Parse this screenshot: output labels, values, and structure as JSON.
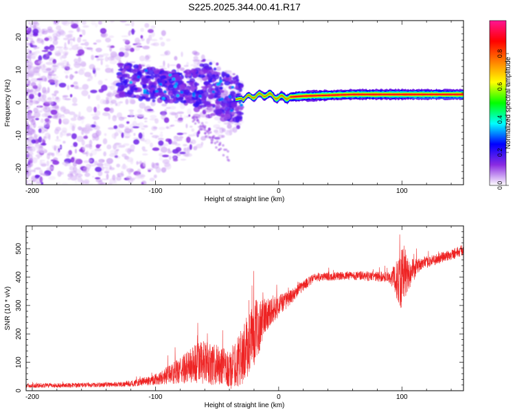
{
  "title": "S225.2025.344.00.41.R17",
  "chart_data": [
    {
      "type": "heatmap",
      "xlabel": "Height of straight line (km)",
      "ylabel": "Frequency (Hz)",
      "xlim": [
        -205,
        150
      ],
      "ylim": [
        -25,
        25
      ],
      "x_ticks": [
        -200,
        -100,
        0,
        100
      ],
      "y_ticks": [
        -20,
        -10,
        0,
        10,
        20
      ],
      "colorbar": {
        "label": "Normalized spectral amplitude",
        "range": [
          0,
          1
        ],
        "ticks": [
          0.0,
          0.2,
          0.4,
          0.6,
          0.8
        ],
        "colors": [
          "#ffffff",
          "#8a2be2",
          "#0000ff",
          "#00ffff",
          "#00ff00",
          "#ffff00",
          "#ff8000",
          "#ff0000",
          "#ff1493"
        ]
      },
      "ridge": [
        {
          "x": -125,
          "f": 7
        },
        {
          "x": -110,
          "f": 6
        },
        {
          "x": -95,
          "f": 5
        },
        {
          "x": -80,
          "f": 5
        },
        {
          "x": -65,
          "f": 4.5
        },
        {
          "x": -55,
          "f": 5
        },
        {
          "x": -45,
          "f": 2
        },
        {
          "x": -35,
          "f": 1
        },
        {
          "x": -20,
          "f": 2
        },
        {
          "x": -10,
          "f": 2.5
        },
        {
          "x": 0,
          "f": 1.5
        },
        {
          "x": 20,
          "f": 2
        },
        {
          "x": 60,
          "f": 2.5
        },
        {
          "x": 100,
          "f": 2.5
        },
        {
          "x": 150,
          "f": 2.5
        }
      ]
    },
    {
      "type": "line",
      "xlabel": "Height of straight line (km)",
      "ylabel": "SNR (10 * v/v)",
      "xlim": [
        -205,
        150
      ],
      "ylim": [
        0,
        580
      ],
      "x_ticks": [
        -200,
        -100,
        0,
        100
      ],
      "y_ticks": [
        0,
        100,
        200,
        300,
        400,
        500
      ],
      "color": "#ee2222",
      "envelope": [
        {
          "x": -205,
          "mean": 18,
          "amp": 8
        },
        {
          "x": -150,
          "mean": 20,
          "amp": 8
        },
        {
          "x": -120,
          "mean": 24,
          "amp": 10
        },
        {
          "x": -100,
          "mean": 40,
          "amp": 20
        },
        {
          "x": -80,
          "mean": 70,
          "amp": 45
        },
        {
          "x": -65,
          "mean": 100,
          "amp": 80
        },
        {
          "x": -50,
          "mean": 90,
          "amp": 70
        },
        {
          "x": -40,
          "mean": 70,
          "amp": 70
        },
        {
          "x": -30,
          "mean": 120,
          "amp": 100
        },
        {
          "x": -20,
          "mean": 200,
          "amp": 120
        },
        {
          "x": -10,
          "mean": 270,
          "amp": 60
        },
        {
          "x": 0,
          "mean": 300,
          "amp": 40
        },
        {
          "x": 10,
          "mean": 330,
          "amp": 25
        },
        {
          "x": 20,
          "mean": 370,
          "amp": 20
        },
        {
          "x": 30,
          "mean": 400,
          "amp": 15
        },
        {
          "x": 60,
          "mean": 405,
          "amp": 15
        },
        {
          "x": 90,
          "mean": 400,
          "amp": 20
        },
        {
          "x": 95,
          "mean": 390,
          "amp": 60
        },
        {
          "x": 100,
          "mean": 400,
          "amp": 120
        },
        {
          "x": 105,
          "mean": 410,
          "amp": 60
        },
        {
          "x": 115,
          "mean": 445,
          "amp": 20
        },
        {
          "x": 130,
          "mean": 465,
          "amp": 20
        },
        {
          "x": 150,
          "mean": 495,
          "amp": 20
        }
      ]
    }
  ]
}
